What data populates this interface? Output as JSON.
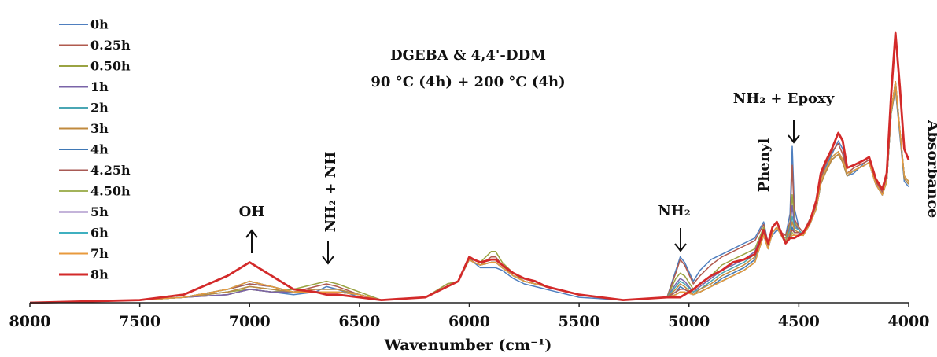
{
  "chart_data": {
    "type": "line",
    "title": "DGEBA & 4,4'-DDM",
    "subtitle": "90 °C (4h) + 200 °C (4h)",
    "xlabel": "Wavenumber (cm⁻¹)",
    "ylabel": "Absorbance",
    "x_reversed": true,
    "xlim": [
      8000,
      4000
    ],
    "ylim": [
      0,
      1
    ],
    "xticks": [
      8000,
      7500,
      7000,
      6500,
      6000,
      5500,
      5000,
      4500,
      4000
    ],
    "grid": false,
    "legend_position": "top-left",
    "x": [
      8000,
      7500,
      7300,
      7100,
      7000,
      6900,
      6800,
      6700,
      6650,
      6600,
      6500,
      6400,
      6200,
      6100,
      6050,
      6000,
      5980,
      5950,
      5900,
      5880,
      5850,
      5800,
      5750,
      5700,
      5650,
      5600,
      5500,
      5300,
      5100,
      5060,
      5040,
      5020,
      4980,
      4950,
      4900,
      4850,
      4800,
      4750,
      4700,
      4680,
      4660,
      4640,
      4620,
      4600,
      4580,
      4560,
      4540,
      4530,
      4520,
      4500,
      4480,
      4450,
      4420,
      4400,
      4380,
      4350,
      4320,
      4300,
      4280,
      4250,
      4200,
      4180,
      4150,
      4120,
      4100,
      4080,
      4060,
      4040,
      4020,
      4000
    ],
    "series": [
      {
        "name": "0h",
        "color": "#4f7fbf",
        "values": [
          0.0,
          0.01,
          0.02,
          0.03,
          0.05,
          0.04,
          0.03,
          0.04,
          0.06,
          0.05,
          0.02,
          0.01,
          0.02,
          0.06,
          0.08,
          0.16,
          0.15,
          0.13,
          0.13,
          0.13,
          0.12,
          0.09,
          0.07,
          0.06,
          0.05,
          0.04,
          0.02,
          0.01,
          0.02,
          0.12,
          0.17,
          0.15,
          0.08,
          0.12,
          0.16,
          0.18,
          0.2,
          0.22,
          0.24,
          0.27,
          0.3,
          0.22,
          0.25,
          0.27,
          0.26,
          0.25,
          0.33,
          0.58,
          0.35,
          0.28,
          0.26,
          0.3,
          0.35,
          0.45,
          0.5,
          0.55,
          0.6,
          0.57,
          0.47,
          0.48,
          0.52,
          0.53,
          0.44,
          0.4,
          0.45,
          0.7,
          0.79,
          0.62,
          0.45,
          0.43
        ]
      },
      {
        "name": "0.25h",
        "color": "#b05a4e",
        "values": [
          0.0,
          0.01,
          0.02,
          0.03,
          0.05,
          0.04,
          0.04,
          0.06,
          0.07,
          0.06,
          0.03,
          0.01,
          0.02,
          0.07,
          0.08,
          0.17,
          0.15,
          0.14,
          0.17,
          0.17,
          0.14,
          0.1,
          0.08,
          0.07,
          0.06,
          0.05,
          0.03,
          0.01,
          0.02,
          0.11,
          0.16,
          0.14,
          0.07,
          0.1,
          0.14,
          0.17,
          0.19,
          0.21,
          0.23,
          0.26,
          0.29,
          0.22,
          0.26,
          0.28,
          0.26,
          0.25,
          0.3,
          0.51,
          0.31,
          0.28,
          0.26,
          0.31,
          0.36,
          0.46,
          0.51,
          0.56,
          0.59,
          0.55,
          0.48,
          0.5,
          0.52,
          0.53,
          0.45,
          0.41,
          0.46,
          0.71,
          0.82,
          0.64,
          0.47,
          0.45
        ]
      },
      {
        "name": "0.50h",
        "color": "#9aa342",
        "values": [
          0.0,
          0.01,
          0.02,
          0.04,
          0.05,
          0.04,
          0.05,
          0.07,
          0.08,
          0.07,
          0.04,
          0.01,
          0.02,
          0.07,
          0.08,
          0.17,
          0.16,
          0.15,
          0.19,
          0.19,
          0.15,
          0.11,
          0.08,
          0.07,
          0.06,
          0.05,
          0.03,
          0.01,
          0.02,
          0.09,
          0.11,
          0.1,
          0.05,
          0.07,
          0.1,
          0.14,
          0.16,
          0.18,
          0.2,
          0.24,
          0.28,
          0.21,
          0.26,
          0.28,
          0.25,
          0.24,
          0.29,
          0.4,
          0.3,
          0.27,
          0.25,
          0.29,
          0.35,
          0.44,
          0.49,
          0.54,
          0.56,
          0.52,
          0.47,
          0.49,
          0.51,
          0.52,
          0.44,
          0.4,
          0.45,
          0.7,
          0.81,
          0.64,
          0.46,
          0.44
        ]
      },
      {
        "name": "1h",
        "color": "#7a64a8",
        "values": [
          0.0,
          0.01,
          0.02,
          0.03,
          0.05,
          0.04,
          0.04,
          0.05,
          0.05,
          0.05,
          0.03,
          0.01,
          0.02,
          0.06,
          0.08,
          0.16,
          0.15,
          0.14,
          0.15,
          0.15,
          0.13,
          0.1,
          0.08,
          0.07,
          0.06,
          0.05,
          0.03,
          0.01,
          0.02,
          0.07,
          0.09,
          0.08,
          0.04,
          0.06,
          0.09,
          0.12,
          0.14,
          0.16,
          0.19,
          0.23,
          0.27,
          0.21,
          0.26,
          0.28,
          0.25,
          0.23,
          0.28,
          0.36,
          0.29,
          0.27,
          0.25,
          0.29,
          0.35,
          0.44,
          0.48,
          0.53,
          0.55,
          0.52,
          0.47,
          0.49,
          0.51,
          0.52,
          0.44,
          0.4,
          0.45,
          0.7,
          0.8,
          0.63,
          0.46,
          0.44
        ]
      },
      {
        "name": "2h",
        "color": "#4aa6b4",
        "values": [
          0.0,
          0.01,
          0.02,
          0.04,
          0.06,
          0.05,
          0.04,
          0.05,
          0.05,
          0.05,
          0.03,
          0.01,
          0.02,
          0.06,
          0.08,
          0.16,
          0.15,
          0.14,
          0.15,
          0.15,
          0.13,
          0.1,
          0.08,
          0.07,
          0.06,
          0.05,
          0.03,
          0.01,
          0.02,
          0.06,
          0.08,
          0.07,
          0.04,
          0.05,
          0.08,
          0.11,
          0.13,
          0.15,
          0.18,
          0.22,
          0.26,
          0.21,
          0.26,
          0.28,
          0.25,
          0.23,
          0.27,
          0.32,
          0.28,
          0.27,
          0.25,
          0.29,
          0.35,
          0.44,
          0.48,
          0.53,
          0.55,
          0.52,
          0.47,
          0.49,
          0.51,
          0.52,
          0.44,
          0.4,
          0.45,
          0.7,
          0.8,
          0.63,
          0.46,
          0.44
        ]
      },
      {
        "name": "3h",
        "color": "#c08a3e",
        "values": [
          0.0,
          0.01,
          0.02,
          0.04,
          0.06,
          0.05,
          0.04,
          0.05,
          0.05,
          0.05,
          0.03,
          0.01,
          0.02,
          0.06,
          0.08,
          0.16,
          0.15,
          0.14,
          0.15,
          0.15,
          0.13,
          0.1,
          0.08,
          0.07,
          0.06,
          0.05,
          0.03,
          0.01,
          0.02,
          0.05,
          0.07,
          0.06,
          0.03,
          0.05,
          0.07,
          0.1,
          0.12,
          0.14,
          0.17,
          0.21,
          0.26,
          0.21,
          0.26,
          0.28,
          0.25,
          0.23,
          0.26,
          0.3,
          0.27,
          0.26,
          0.25,
          0.29,
          0.35,
          0.44,
          0.48,
          0.53,
          0.55,
          0.52,
          0.47,
          0.49,
          0.51,
          0.52,
          0.44,
          0.4,
          0.45,
          0.7,
          0.8,
          0.63,
          0.46,
          0.44
        ]
      },
      {
        "name": "4h",
        "color": "#3f78b5",
        "values": [
          0.0,
          0.01,
          0.02,
          0.05,
          0.07,
          0.06,
          0.04,
          0.04,
          0.04,
          0.04,
          0.03,
          0.01,
          0.02,
          0.06,
          0.08,
          0.16,
          0.15,
          0.14,
          0.15,
          0.15,
          0.13,
          0.1,
          0.08,
          0.07,
          0.06,
          0.05,
          0.03,
          0.01,
          0.02,
          0.04,
          0.06,
          0.05,
          0.03,
          0.04,
          0.06,
          0.09,
          0.11,
          0.13,
          0.16,
          0.2,
          0.25,
          0.2,
          0.26,
          0.28,
          0.25,
          0.22,
          0.25,
          0.28,
          0.26,
          0.26,
          0.25,
          0.29,
          0.35,
          0.45,
          0.49,
          0.54,
          0.56,
          0.53,
          0.48,
          0.49,
          0.51,
          0.52,
          0.44,
          0.4,
          0.45,
          0.71,
          0.82,
          0.64,
          0.47,
          0.45
        ]
      },
      {
        "name": "4.25h",
        "color": "#a85a55",
        "values": [
          0.0,
          0.01,
          0.02,
          0.05,
          0.07,
          0.06,
          0.04,
          0.04,
          0.04,
          0.04,
          0.03,
          0.01,
          0.02,
          0.06,
          0.08,
          0.16,
          0.15,
          0.14,
          0.15,
          0.15,
          0.13,
          0.1,
          0.08,
          0.07,
          0.06,
          0.05,
          0.03,
          0.01,
          0.02,
          0.04,
          0.05,
          0.05,
          0.03,
          0.04,
          0.06,
          0.08,
          0.1,
          0.12,
          0.15,
          0.2,
          0.25,
          0.2,
          0.26,
          0.28,
          0.25,
          0.22,
          0.25,
          0.27,
          0.26,
          0.26,
          0.25,
          0.29,
          0.35,
          0.45,
          0.49,
          0.54,
          0.56,
          0.53,
          0.48,
          0.49,
          0.51,
          0.52,
          0.44,
          0.4,
          0.45,
          0.71,
          0.82,
          0.64,
          0.47,
          0.45
        ]
      },
      {
        "name": "4.50h",
        "color": "#a3b35a",
        "values": [
          0.0,
          0.01,
          0.02,
          0.05,
          0.08,
          0.06,
          0.04,
          0.04,
          0.04,
          0.04,
          0.03,
          0.01,
          0.02,
          0.06,
          0.08,
          0.16,
          0.15,
          0.14,
          0.15,
          0.15,
          0.13,
          0.1,
          0.08,
          0.07,
          0.06,
          0.05,
          0.03,
          0.01,
          0.02,
          0.03,
          0.04,
          0.04,
          0.03,
          0.04,
          0.06,
          0.08,
          0.1,
          0.12,
          0.15,
          0.2,
          0.25,
          0.2,
          0.26,
          0.28,
          0.25,
          0.22,
          0.24,
          0.26,
          0.25,
          0.25,
          0.25,
          0.29,
          0.35,
          0.45,
          0.49,
          0.54,
          0.56,
          0.53,
          0.48,
          0.49,
          0.51,
          0.52,
          0.44,
          0.4,
          0.45,
          0.71,
          0.82,
          0.64,
          0.47,
          0.45
        ]
      },
      {
        "name": "5h",
        "color": "#8a6ab5",
        "values": [
          0.0,
          0.01,
          0.02,
          0.05,
          0.08,
          0.06,
          0.04,
          0.04,
          0.04,
          0.04,
          0.03,
          0.01,
          0.02,
          0.06,
          0.08,
          0.16,
          0.15,
          0.14,
          0.15,
          0.15,
          0.13,
          0.1,
          0.08,
          0.07,
          0.06,
          0.05,
          0.03,
          0.01,
          0.02,
          0.03,
          0.04,
          0.04,
          0.03,
          0.04,
          0.06,
          0.08,
          0.1,
          0.12,
          0.15,
          0.2,
          0.25,
          0.2,
          0.26,
          0.28,
          0.25,
          0.22,
          0.24,
          0.25,
          0.25,
          0.25,
          0.25,
          0.29,
          0.35,
          0.45,
          0.49,
          0.54,
          0.56,
          0.53,
          0.48,
          0.49,
          0.51,
          0.52,
          0.44,
          0.4,
          0.45,
          0.71,
          0.82,
          0.64,
          0.47,
          0.45
        ]
      },
      {
        "name": "6h",
        "color": "#3fb0c0",
        "values": [
          0.0,
          0.01,
          0.02,
          0.05,
          0.08,
          0.06,
          0.04,
          0.04,
          0.04,
          0.04,
          0.03,
          0.01,
          0.02,
          0.06,
          0.08,
          0.16,
          0.15,
          0.14,
          0.15,
          0.15,
          0.13,
          0.1,
          0.08,
          0.07,
          0.06,
          0.05,
          0.03,
          0.01,
          0.02,
          0.03,
          0.04,
          0.04,
          0.03,
          0.04,
          0.06,
          0.08,
          0.1,
          0.12,
          0.15,
          0.2,
          0.25,
          0.2,
          0.26,
          0.28,
          0.25,
          0.22,
          0.24,
          0.25,
          0.25,
          0.25,
          0.25,
          0.29,
          0.35,
          0.45,
          0.49,
          0.54,
          0.56,
          0.53,
          0.48,
          0.49,
          0.51,
          0.52,
          0.44,
          0.4,
          0.45,
          0.71,
          0.82,
          0.64,
          0.47,
          0.45
        ]
      },
      {
        "name": "7h",
        "color": "#e89a3c",
        "values": [
          0.0,
          0.01,
          0.02,
          0.05,
          0.08,
          0.06,
          0.04,
          0.04,
          0.04,
          0.04,
          0.03,
          0.01,
          0.02,
          0.06,
          0.08,
          0.16,
          0.15,
          0.14,
          0.15,
          0.15,
          0.13,
          0.1,
          0.08,
          0.07,
          0.06,
          0.05,
          0.03,
          0.01,
          0.02,
          0.03,
          0.04,
          0.04,
          0.03,
          0.04,
          0.06,
          0.08,
          0.1,
          0.12,
          0.15,
          0.2,
          0.25,
          0.2,
          0.26,
          0.28,
          0.25,
          0.22,
          0.24,
          0.25,
          0.25,
          0.25,
          0.25,
          0.29,
          0.35,
          0.45,
          0.49,
          0.54,
          0.56,
          0.53,
          0.48,
          0.49,
          0.51,
          0.52,
          0.44,
          0.4,
          0.45,
          0.71,
          0.82,
          0.64,
          0.47,
          0.45
        ]
      },
      {
        "name": "8h",
        "color": "#d32a2a",
        "values": [
          0.0,
          0.01,
          0.03,
          0.1,
          0.15,
          0.1,
          0.05,
          0.04,
          0.03,
          0.03,
          0.02,
          0.01,
          0.02,
          0.06,
          0.08,
          0.17,
          0.16,
          0.15,
          0.16,
          0.16,
          0.14,
          0.11,
          0.09,
          0.08,
          0.06,
          0.05,
          0.03,
          0.01,
          0.02,
          0.02,
          0.02,
          0.03,
          0.05,
          0.07,
          0.1,
          0.12,
          0.15,
          0.16,
          0.18,
          0.22,
          0.27,
          0.22,
          0.28,
          0.3,
          0.26,
          0.22,
          0.24,
          0.24,
          0.24,
          0.25,
          0.26,
          0.3,
          0.38,
          0.48,
          0.52,
          0.57,
          0.63,
          0.6,
          0.5,
          0.51,
          0.53,
          0.54,
          0.46,
          0.42,
          0.48,
          0.77,
          1.0,
          0.8,
          0.57,
          0.53
        ]
      }
    ],
    "annotations": [
      {
        "id": "oh",
        "text": "OH",
        "x": 7000,
        "arrow": "up"
      },
      {
        "id": "nh2-nh",
        "text": "NH₂ + NH",
        "x": 6650,
        "arrow": "down",
        "rotated": true
      },
      {
        "id": "nh2",
        "text": "NH₂",
        "x": 5040,
        "arrow": "down"
      },
      {
        "id": "phenyl",
        "text": "Phenyl",
        "x": 4600,
        "arrow": "none",
        "rotated": true
      },
      {
        "id": "nh2-epoxy",
        "text": "NH₂ + Epoxy",
        "x": 4530,
        "arrow": "down"
      }
    ]
  }
}
